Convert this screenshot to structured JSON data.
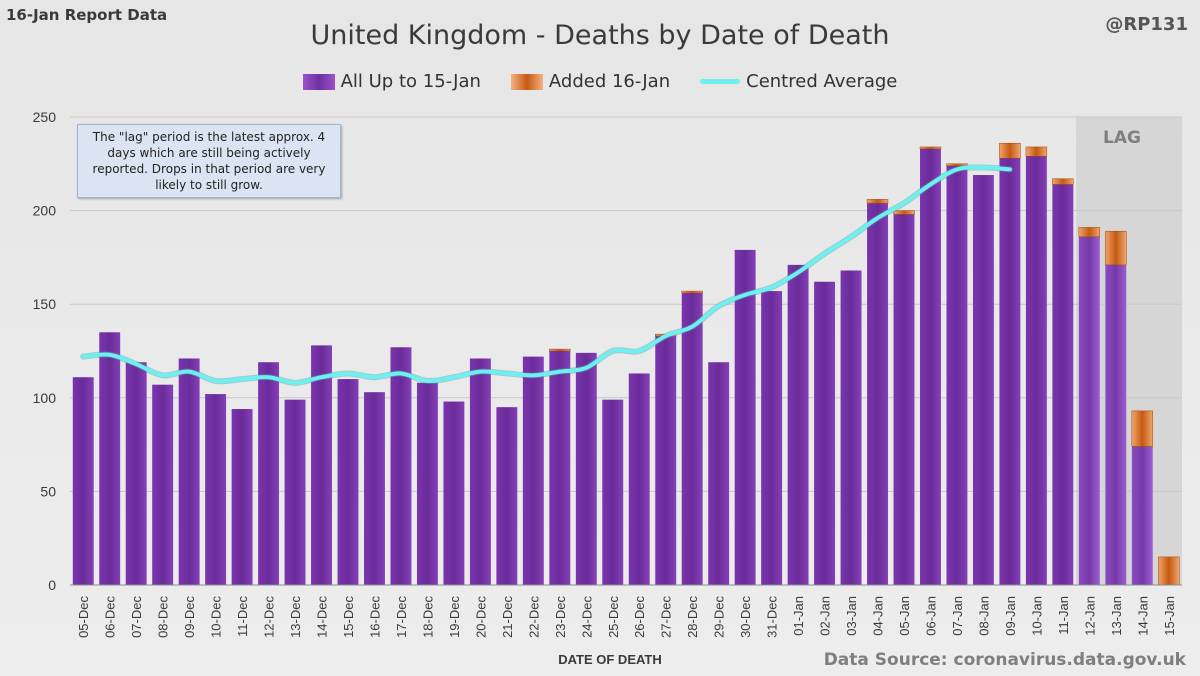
{
  "header": {
    "corner_left": "16-Jan Report Data",
    "corner_right": "@RP131",
    "title": "United Kingdom - Deaths by Date of Death"
  },
  "legend": {
    "base": "All Up to 15-Jan",
    "added": "Added 16-Jan",
    "avg": "Centred Average"
  },
  "note": "The \"lag\" period is the latest approx. 4 days which are still being actively reported. Drops in that period are very likely to still grow.",
  "lag_label": "LAG",
  "source": "Data Source: coronavirus.data.gov.uk",
  "colors": {
    "base": "#7030a0",
    "base_light": "#9b52cc",
    "added": "#c55a11",
    "added_light": "#f4b183",
    "avg": "#6ff0f0",
    "lag_shade": "#d6d6d6",
    "grid": "#c8c8c8"
  },
  "chart_data": {
    "type": "bar",
    "stacked": true,
    "title": "United Kingdom - Deaths by Date of Death",
    "xlabel": "DATE OF DEATH",
    "ylabel": "",
    "ylim": [
      0,
      250
    ],
    "yticks": [
      0,
      50,
      100,
      150,
      200,
      250
    ],
    "grid": true,
    "legend_position": "top-center",
    "lag_categories": [
      "12-Jan",
      "13-Jan",
      "14-Jan",
      "15-Jan"
    ],
    "categories": [
      "05-Dec",
      "06-Dec",
      "07-Dec",
      "08-Dec",
      "09-Dec",
      "10-Dec",
      "11-Dec",
      "12-Dec",
      "13-Dec",
      "14-Dec",
      "15-Dec",
      "16-Dec",
      "17-Dec",
      "18-Dec",
      "19-Dec",
      "20-Dec",
      "21-Dec",
      "22-Dec",
      "23-Dec",
      "24-Dec",
      "25-Dec",
      "26-Dec",
      "27-Dec",
      "28-Dec",
      "29-Dec",
      "30-Dec",
      "31-Dec",
      "01-Jan",
      "02-Jan",
      "03-Jan",
      "04-Jan",
      "05-Jan",
      "06-Jan",
      "07-Jan",
      "08-Jan",
      "09-Jan",
      "10-Jan",
      "11-Jan",
      "12-Jan",
      "13-Jan",
      "14-Jan",
      "15-Jan"
    ],
    "series": [
      {
        "name": "All Up to 15-Jan",
        "values": [
          111,
          135,
          119,
          107,
          121,
          102,
          94,
          119,
          99,
          128,
          110,
          103,
          127,
          108,
          98,
          121,
          95,
          122,
          125,
          124,
          99,
          113,
          133,
          156,
          119,
          179,
          157,
          171,
          162,
          168,
          204,
          198,
          233,
          224,
          219,
          228,
          229,
          214,
          186,
          171,
          74,
          0
        ]
      },
      {
        "name": "Added 16-Jan",
        "values": [
          0,
          0,
          0,
          0,
          0,
          0,
          0,
          0,
          0,
          0,
          0,
          0,
          0,
          0,
          0,
          0,
          0,
          0,
          1,
          0,
          0,
          0,
          1,
          1,
          0,
          0,
          0,
          0,
          0,
          0,
          2,
          2,
          1,
          1,
          0,
          8,
          5,
          3,
          5,
          18,
          19,
          15
        ]
      },
      {
        "name": "Centred Average",
        "type": "line",
        "values": [
          122,
          123,
          118,
          112,
          114,
          109,
          110,
          111,
          108,
          111,
          113,
          111,
          113,
          109,
          111,
          114,
          113,
          112,
          114,
          116,
          125,
          125,
          133,
          138,
          149,
          155,
          159,
          167,
          177,
          186,
          196,
          204,
          214,
          222,
          223,
          222,
          null,
          null,
          null,
          null,
          null,
          null
        ]
      }
    ]
  }
}
